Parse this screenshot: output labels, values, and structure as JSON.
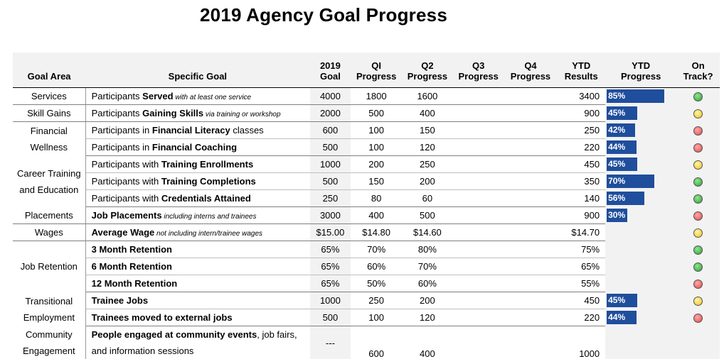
{
  "title": "2019 Agency Goal Progress",
  "headers": {
    "area": "Goal Area",
    "goal": "Specific Goal",
    "g2019_top": "2019",
    "g2019_bot": "Goal",
    "q1_top": "QI",
    "q1_bot": "Progress",
    "q2_top": "Q2",
    "q2_bot": "Progress",
    "q3_top": "Q3",
    "q3_bot": "Progress",
    "q4_top": "Q4",
    "q4_bot": "Progress",
    "ytd_top": "YTD",
    "ytd_bot": "Results",
    "yp_top": "YTD",
    "yp_bot": "Progress",
    "on_top": "On",
    "on_bot": "Track?"
  },
  "colors": {
    "bar": "#1f4e9c",
    "green": "#2e9e3a",
    "yellow": "#f2c21a",
    "red": "#e04848"
  },
  "rows": [
    {
      "pre": "Participants ",
      "bold": "Served",
      "post": "",
      "italic": " with at least one service",
      "g2019": "4000",
      "q1": "1800",
      "q2": "1600",
      "ytd": "3400",
      "pct": "85%",
      "pct_value": 85,
      "status": "green"
    },
    {
      "pre": "Participants ",
      "bold": "Gaining Skills",
      "post": "",
      "italic": " via training or workshop",
      "g2019": "2000",
      "q1": "500",
      "q2": "400",
      "ytd": "900",
      "pct": "45%",
      "pct_value": 45,
      "status": "yellow"
    },
    {
      "pre": "Participants in ",
      "bold": "Financial Literacy",
      "post": " classes",
      "italic": "",
      "g2019": "600",
      "q1": "100",
      "q2": "150",
      "ytd": "250",
      "pct": "42%",
      "pct_value": 42,
      "status": "red"
    },
    {
      "pre": "Participants in ",
      "bold": "Financial Coaching",
      "post": "",
      "italic": "",
      "g2019": "500",
      "q1": "100",
      "q2": "120",
      "ytd": "220",
      "pct": "44%",
      "pct_value": 44,
      "status": "red"
    },
    {
      "pre": "Participants with ",
      "bold": "Training Enrollments",
      "post": "",
      "italic": "",
      "g2019": "1000",
      "q1": "200",
      "q2": "250",
      "ytd": "450",
      "pct": "45%",
      "pct_value": 45,
      "status": "yellow"
    },
    {
      "pre": "Participants with ",
      "bold": "Training Completions",
      "post": "",
      "italic": "",
      "g2019": "500",
      "q1": "150",
      "q2": "200",
      "ytd": "350",
      "pct": "70%",
      "pct_value": 70,
      "status": "green"
    },
    {
      "pre": "Participants with ",
      "bold": "Credentials Attained",
      "post": "",
      "italic": "",
      "g2019": "250",
      "q1": "80",
      "q2": "60",
      "ytd": "140",
      "pct": "56%",
      "pct_value": 56,
      "status": "green"
    },
    {
      "pre": "",
      "bold": "Job Placements",
      "post": "",
      "italic": " including interns and trainees",
      "g2019": "3000",
      "q1": "400",
      "q2": "500",
      "ytd": "900",
      "pct": "30%",
      "pct_value": 30,
      "status": "red"
    },
    {
      "pre": "",
      "bold": "Average Wage",
      "post": "",
      "italic": " not including intern/trainee wages",
      "g2019": "$15.00",
      "q1": "$14.80",
      "q2": "$14.60",
      "ytd": "$14.70",
      "pct": "",
      "pct_value": 0,
      "status": "yellow"
    },
    {
      "pre": "",
      "bold": "3 Month Retention",
      "post": "",
      "italic": "",
      "g2019": "65%",
      "q1": "70%",
      "q2": "80%",
      "ytd": "75%",
      "pct": "",
      "pct_value": 0,
      "status": "green"
    },
    {
      "pre": "",
      "bold": "6 Month Retention",
      "post": "",
      "italic": "",
      "g2019": "65%",
      "q1": "60%",
      "q2": "70%",
      "ytd": "65%",
      "pct": "",
      "pct_value": 0,
      "status": "green"
    },
    {
      "pre": "",
      "bold": "12 Month Retention",
      "post": "",
      "italic": "",
      "g2019": "65%",
      "q1": "50%",
      "q2": "60%",
      "ytd": "55%",
      "pct": "",
      "pct_value": 0,
      "status": "red"
    },
    {
      "pre": "",
      "bold": "Trainee Jobs",
      "post": "",
      "italic": "",
      "g2019": "1000",
      "q1": "250",
      "q2": "200",
      "ytd": "450",
      "pct": "45%",
      "pct_value": 45,
      "status": "yellow"
    },
    {
      "pre": "",
      "bold": "Trainees moved to external jobs",
      "post": "",
      "italic": "",
      "g2019": "500",
      "q1": "100",
      "q2": "120",
      "ytd": "220",
      "pct": "44%",
      "pct_value": 44,
      "status": "red"
    }
  ],
  "areas": {
    "services": "Services",
    "skill_gains": "Skill Gains",
    "financial_wellness": "Financial Wellness",
    "career_training": "Career Training and Education",
    "placements": "Placements",
    "wages": "Wages",
    "job_retention": "Job Retention",
    "transitional": "Transitional Employment",
    "community": "Community Engagement"
  },
  "community": {
    "bold": "People engaged at community events",
    "rest": ", job fairs, and information sessions",
    "g2019": "---",
    "q1": "600",
    "q2": "400",
    "ytd": "1000"
  }
}
